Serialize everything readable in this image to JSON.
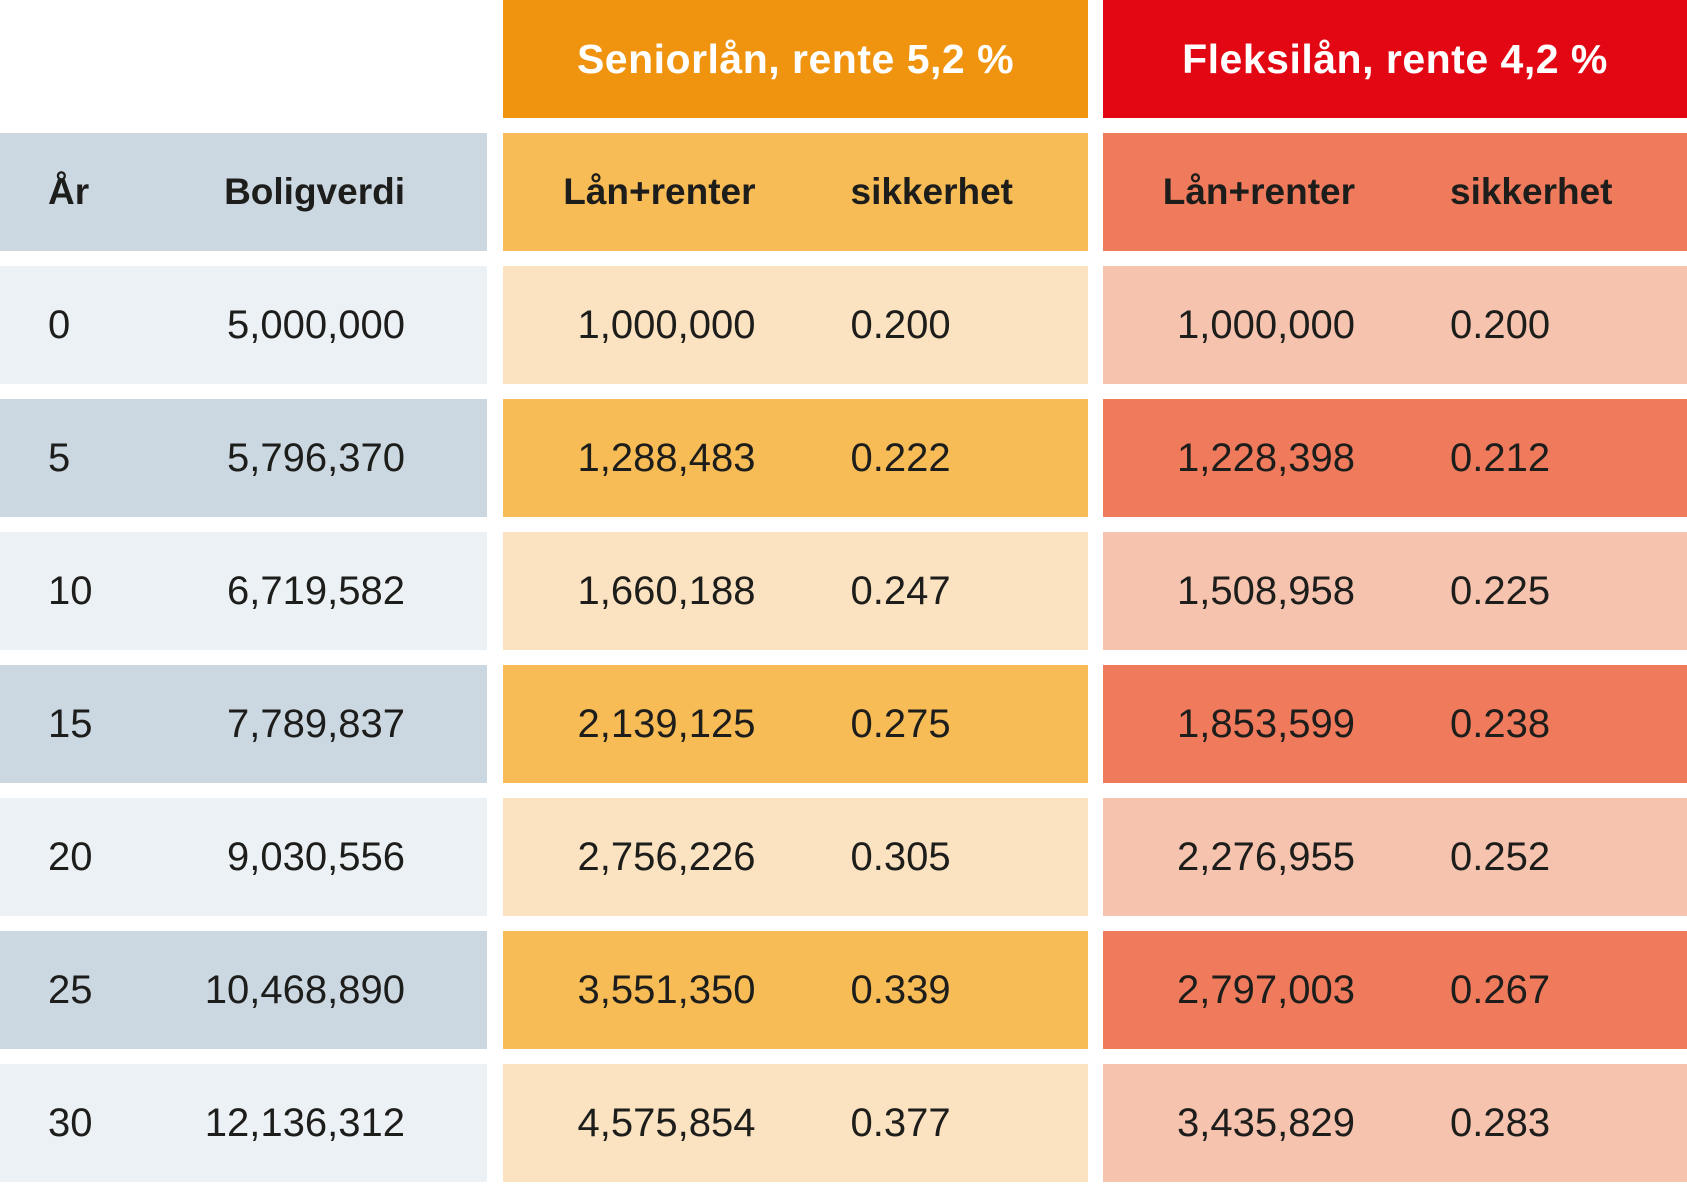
{
  "table": {
    "base": {
      "col1": "År",
      "col2": "Boligverdi"
    },
    "senior": {
      "title": "Seniorlån, rente 5,2 %",
      "col1": "Lån+renter",
      "col2": "sikkerhet"
    },
    "fleksi": {
      "title": "Fleksilån, rente 4,2 %",
      "col1": "Lån+renter",
      "col2": "sikkerhet"
    },
    "rows": [
      {
        "year": "0",
        "home_value": "5,000,000",
        "senior_loan": "1,000,000",
        "senior_security": "0.200",
        "fleksi_loan": "1,000,000",
        "fleksi_security": "0.200"
      },
      {
        "year": "5",
        "home_value": "5,796,370",
        "senior_loan": "1,288,483",
        "senior_security": "0.222",
        "fleksi_loan": "1,228,398",
        "fleksi_security": "0.212"
      },
      {
        "year": "10",
        "home_value": "6,719,582",
        "senior_loan": "1,660,188",
        "senior_security": "0.247",
        "fleksi_loan": "1,508,958",
        "fleksi_security": "0.225"
      },
      {
        "year": "15",
        "home_value": "7,789,837",
        "senior_loan": "2,139,125",
        "senior_security": "0.275",
        "fleksi_loan": "1,853,599",
        "fleksi_security": "0.238"
      },
      {
        "year": "20",
        "home_value": "9,030,556",
        "senior_loan": "2,756,226",
        "senior_security": "0.305",
        "fleksi_loan": "2,276,955",
        "fleksi_security": "0.252"
      },
      {
        "year": "25",
        "home_value": "10,468,890",
        "senior_loan": "3,551,350",
        "senior_security": "0.339",
        "fleksi_loan": "2,797,003",
        "fleksi_security": "0.267"
      },
      {
        "year": "30",
        "home_value": "12,136,312",
        "senior_loan": "4,575,854",
        "senior_security": "0.377",
        "fleksi_loan": "3,435,829",
        "fleksi_security": "0.283"
      }
    ]
  },
  "colors": {
    "senior_header": "#F0930F",
    "senior_strong": "#F8BC56",
    "senior_light": "#FBE2C0",
    "fleksi_header": "#E30613",
    "fleksi_strong": "#EF7B5C",
    "fleksi_light": "#F6C3AF",
    "base_strong": "#CBD8E1",
    "base_light": "#ECF1F5",
    "text": "#1D1D1B",
    "title_text": "#FFFFFF"
  },
  "chart_data": {
    "type": "table",
    "title": "",
    "column_groups": [
      "",
      "Seniorlån, rente 5,2 %",
      "Fleksilån, rente 4,2 %"
    ],
    "columns": [
      "År",
      "Boligverdi",
      "Lån+renter",
      "sikkerhet",
      "Lån+renter",
      "sikkerhet"
    ],
    "rows": [
      [
        0,
        "5,000,000",
        "1,000,000",
        "0.200",
        "1,000,000",
        "0.200"
      ],
      [
        5,
        "5,796,370",
        "1,288,483",
        "0.222",
        "1,228,398",
        "0.212"
      ],
      [
        10,
        "6,719,582",
        "1,660,188",
        "0.247",
        "1,508,958",
        "0.225"
      ],
      [
        15,
        "7,789,837",
        "2,139,125",
        "0.275",
        "1,853,599",
        "0.238"
      ],
      [
        20,
        "9,030,556",
        "2,756,226",
        "0.305",
        "2,276,955",
        "0.252"
      ],
      [
        25,
        "10,468,890",
        "3,551,350",
        "0.339",
        "2,797,003",
        "0.267"
      ],
      [
        30,
        "12,136,312",
        "4,575,854",
        "0.377",
        "3,435,829",
        "0.283"
      ]
    ]
  }
}
